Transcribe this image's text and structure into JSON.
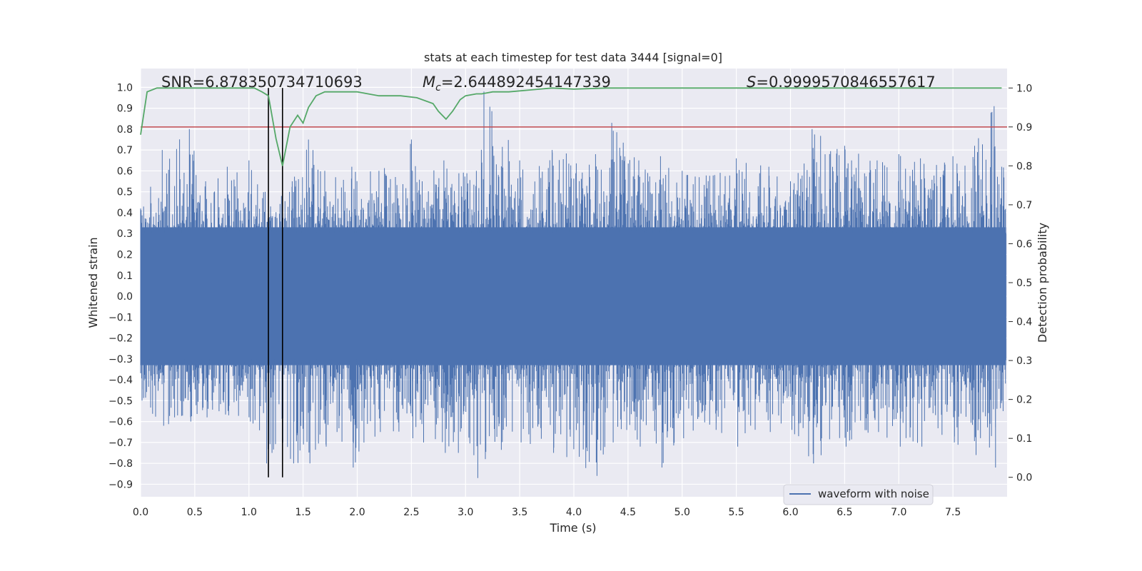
{
  "chart_data": {
    "type": "line",
    "title": "stats at each timestep for test data 3444 [signal=0]",
    "xlabel": "Time (s)",
    "ylabel": "Whitened strain",
    "y2label": "Detection probability",
    "xlim": [
      0.0,
      8.0
    ],
    "ylim": [
      -0.96,
      1.09
    ],
    "y2lim": [
      -0.05,
      1.05
    ],
    "xticks": [
      "0.0",
      "0.5",
      "1.0",
      "1.5",
      "2.0",
      "2.5",
      "3.0",
      "3.5",
      "4.0",
      "4.5",
      "5.0",
      "5.5",
      "6.0",
      "6.5",
      "7.0",
      "7.5"
    ],
    "yticks": [
      "1.0",
      "0.9",
      "0.8",
      "0.7",
      "0.6",
      "0.5",
      "0.4",
      "0.3",
      "0.2",
      "0.1",
      "0.0",
      "-0.1",
      "-0.2",
      "-0.3",
      "-0.4",
      "-0.5",
      "-0.6",
      "-0.7",
      "-0.8",
      "-0.9"
    ],
    "y2ticks": [
      "1.0",
      "0.9",
      "0.8",
      "0.7",
      "0.6",
      "0.5",
      "0.4",
      "0.3",
      "0.2",
      "0.1",
      "0.0"
    ],
    "grid": true,
    "legend_position": "lower-right",
    "annotations": {
      "snr": "SNR=6.878350734710693",
      "mc": "=2.644892454147339",
      "mc_symbol": "M",
      "mc_sub": "c",
      "s": "=0.9999570846557617",
      "s_symbol": "S"
    },
    "vlines": [
      1.18,
      1.31
    ],
    "threshold": 0.9,
    "colors": {
      "waveform": "#4c72b0",
      "probability": "#55a868",
      "threshold": "#c44e52",
      "vline": "#000000",
      "background": "#eaeaf2",
      "grid": "#ffffff"
    },
    "series": [
      {
        "name": "waveform with noise",
        "kind": "whitened-strain-envelope",
        "x_range": [
          0.0,
          7.99
        ],
        "core_band": [
          -0.33,
          0.33
        ],
        "envelope": {
          "x": [
            0.0,
            0.2,
            0.45,
            0.6,
            0.8,
            1.0,
            1.15,
            1.2,
            1.3,
            1.4,
            1.55,
            1.7,
            1.8,
            1.95,
            2.2,
            2.5,
            2.6,
            2.8,
            3.1,
            3.17,
            3.5,
            3.8,
            4.2,
            4.35,
            4.6,
            4.8,
            5.0,
            5.3,
            5.5,
            5.8,
            6.0,
            6.2,
            6.5,
            6.8,
            7.0,
            7.2,
            7.5,
            7.7,
            7.88,
            7.95
          ],
          "upper": [
            0.42,
            0.7,
            0.8,
            0.55,
            0.62,
            0.65,
            0.5,
            0.43,
            0.48,
            0.55,
            0.75,
            0.6,
            0.57,
            0.62,
            0.6,
            0.75,
            0.55,
            0.65,
            0.6,
            0.98,
            0.65,
            0.7,
            0.68,
            0.83,
            0.65,
            0.67,
            0.6,
            0.58,
            0.66,
            0.62,
            0.55,
            0.8,
            0.72,
            0.65,
            0.68,
            0.66,
            0.67,
            0.72,
            0.91,
            0.62
          ],
          "lower": [
            -0.5,
            -0.62,
            -0.6,
            -0.58,
            -0.57,
            -0.6,
            -0.8,
            -0.75,
            -0.7,
            -0.8,
            -0.8,
            -0.72,
            -0.65,
            -0.82,
            -0.65,
            -0.68,
            -0.7,
            -0.75,
            -0.87,
            -0.78,
            -0.7,
            -0.75,
            -0.86,
            -0.7,
            -0.72,
            -0.82,
            -0.68,
            -0.64,
            -0.72,
            -0.65,
            -0.64,
            -0.8,
            -0.72,
            -0.65,
            -0.72,
            -0.72,
            -0.7,
            -0.76,
            -0.82,
            -0.55
          ]
        }
      },
      {
        "name": "",
        "kind": "detection-probability",
        "axis": "y2",
        "x": [
          0.0,
          0.06,
          0.15,
          0.3,
          0.5,
          0.7,
          0.9,
          1.05,
          1.12,
          1.18,
          1.25,
          1.31,
          1.38,
          1.45,
          1.5,
          1.55,
          1.62,
          1.7,
          1.8,
          1.9,
          2.0,
          2.1,
          2.2,
          2.4,
          2.55,
          2.7,
          2.75,
          2.82,
          2.88,
          2.95,
          3.0,
          3.1,
          3.15,
          3.25,
          3.4,
          3.6,
          3.8,
          4.0,
          4.3,
          4.6,
          5.0,
          6.0,
          7.0,
          7.95
        ],
        "y": [
          0.88,
          0.99,
          1.0,
          1.0,
          1.0,
          1.0,
          1.0,
          1.0,
          0.99,
          0.98,
          0.87,
          0.8,
          0.9,
          0.93,
          0.91,
          0.95,
          0.98,
          0.99,
          0.99,
          0.99,
          0.99,
          0.985,
          0.98,
          0.98,
          0.975,
          0.96,
          0.94,
          0.92,
          0.94,
          0.97,
          0.98,
          0.985,
          0.985,
          0.99,
          0.99,
          0.995,
          1.0,
          0.997,
          1.0,
          1.0,
          1.0,
          1.0,
          1.0,
          1.0
        ]
      }
    ]
  }
}
